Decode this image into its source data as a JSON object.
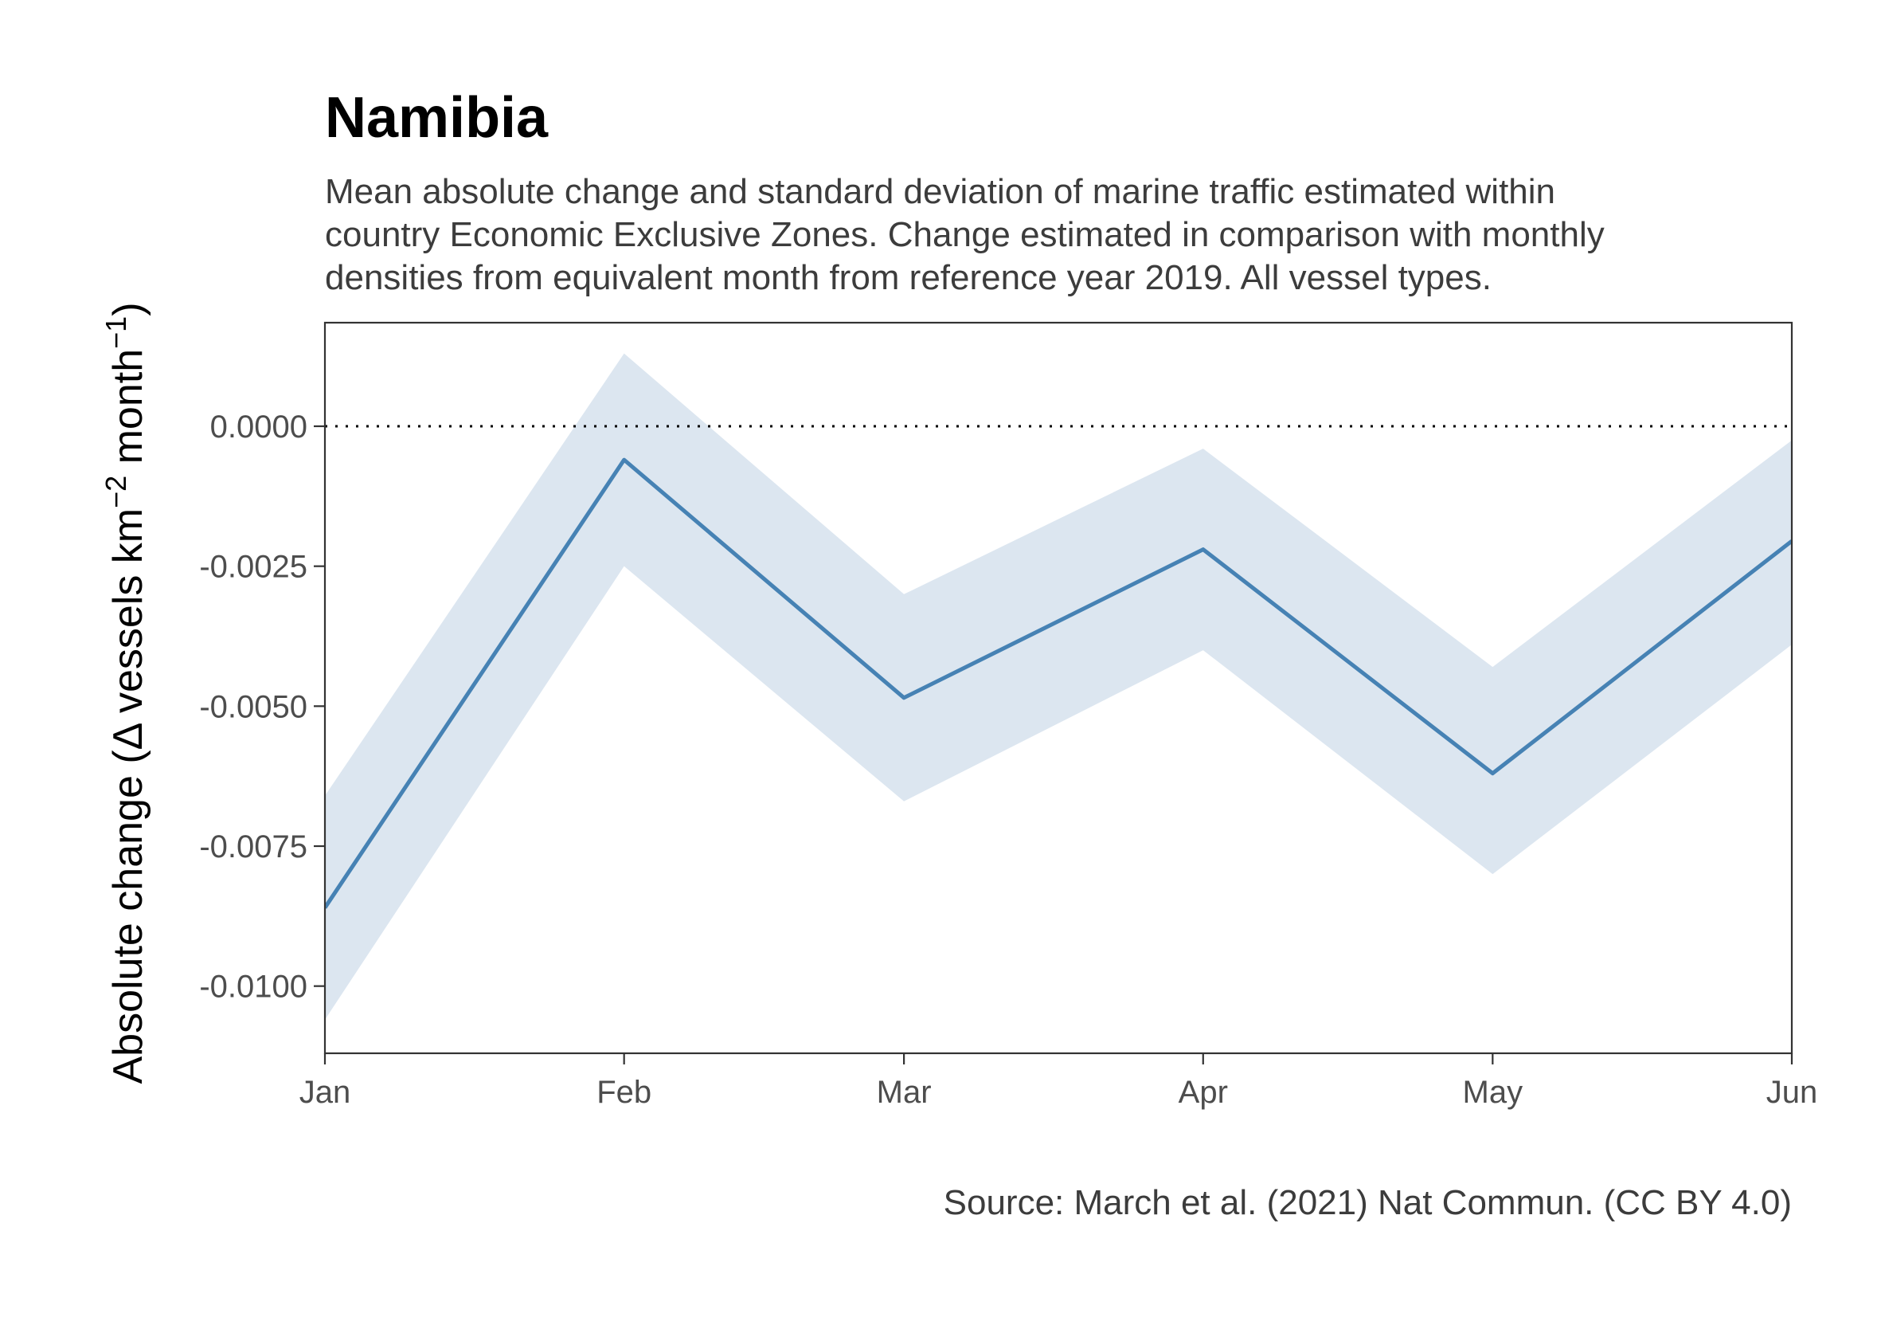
{
  "chart_data": {
    "type": "line",
    "title": "Namibia",
    "subtitle": [
      "Mean absolute change and standard deviation of marine traffic estimated within",
      "country Economic Exclusive Zones. Change estimated in comparison with monthly",
      "densities from equivalent month from reference year 2019. All vessel types."
    ],
    "ylabel": {
      "prefix": "Absolute change (Δ vessels km",
      "sup1": "−2",
      "mid": " month",
      "sup2": "−1",
      "suffix": ")"
    },
    "caption": "Source: March et al. (2021) Nat Commun. (CC BY 4.0)",
    "x": [
      "2020-01-01",
      "2020-02-01",
      "2020-03-01",
      "2020-04-01",
      "2020-05-01",
      "2020-06-01"
    ],
    "x_tick_labels": [
      "Jan",
      "Feb",
      "Mar",
      "Apr",
      "May",
      "Jun"
    ],
    "y_ticks": [
      0.0,
      -0.0025,
      -0.005,
      -0.0075,
      -0.01
    ],
    "y_tick_labels": [
      "0.0000",
      "-0.0025",
      "-0.0050",
      "-0.0075",
      "-0.0100"
    ],
    "ylim": [
      -0.0112,
      0.00185
    ],
    "series": [
      {
        "values": [
          -0.0086,
          -0.0006,
          -0.00485,
          -0.0022,
          -0.0062,
          -0.00205
        ],
        "sd_upper": [
          -0.0066,
          0.0013,
          -0.003,
          -0.0004,
          -0.0043,
          -0.00025
        ],
        "sd_lower": [
          -0.0106,
          -0.0025,
          -0.0067,
          -0.004,
          -0.008,
          -0.0039
        ],
        "color": "#4682b4",
        "band_color": "#dce6f0"
      }
    ],
    "reference_line": {
      "y": 0,
      "style": "dotted",
      "color": "#000000"
    },
    "grid": false,
    "legend": "none"
  }
}
